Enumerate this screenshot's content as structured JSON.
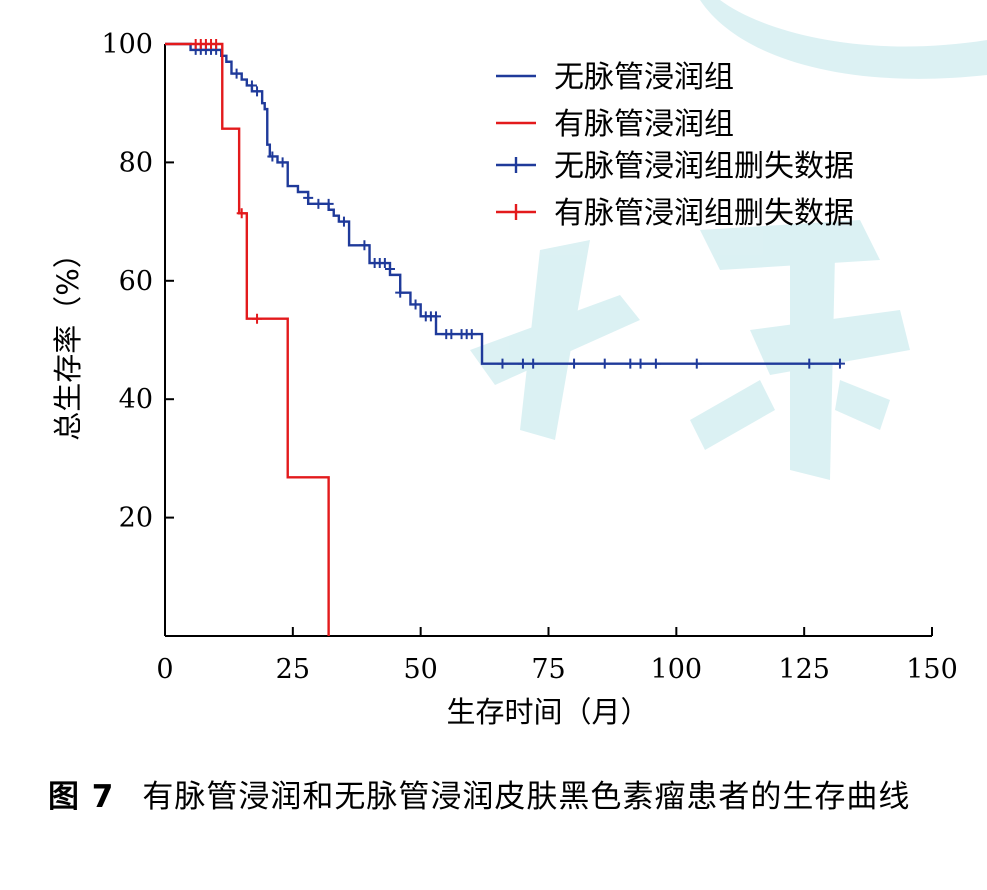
{
  "chart_data": {
    "type": "line",
    "subtype": "kaplan-meier",
    "xlabel": "生存时间（月）",
    "ylabel": "总生存率（%）",
    "xlim": [
      0,
      150
    ],
    "ylim": [
      0,
      100
    ],
    "xticks": [
      "0",
      "25",
      "50",
      "75",
      "100",
      "125",
      "150"
    ],
    "yticks": [
      "20",
      "40",
      "60",
      "80",
      "100"
    ],
    "grid": false,
    "legend_position": "top-right",
    "legend": [
      "无脉管浸润组",
      "有脉管浸润组",
      "无脉管浸润组删失数据",
      "有脉管浸润组删失数据"
    ],
    "series": [
      {
        "name": "无脉管浸润组",
        "color": "#1f3a9a",
        "steps": [
          [
            0,
            100
          ],
          [
            5,
            99
          ],
          [
            11,
            98
          ],
          [
            12,
            97
          ],
          [
            13,
            95
          ],
          [
            15,
            94
          ],
          [
            16,
            93
          ],
          [
            17,
            92
          ],
          [
            19,
            90
          ],
          [
            19.5,
            89
          ],
          [
            20,
            83
          ],
          [
            20.5,
            81
          ],
          [
            22,
            80
          ],
          [
            24,
            76
          ],
          [
            26,
            75
          ],
          [
            28,
            73
          ],
          [
            32,
            72
          ],
          [
            33,
            71
          ],
          [
            34,
            70
          ],
          [
            36,
            66
          ],
          [
            40,
            63
          ],
          [
            44,
            61
          ],
          [
            46,
            58
          ],
          [
            48,
            56
          ],
          [
            50,
            54
          ],
          [
            53,
            51
          ],
          [
            62,
            46
          ],
          [
            132,
            46
          ]
        ],
        "censored": [
          [
            6,
            99
          ],
          [
            7,
            99
          ],
          [
            8,
            99
          ],
          [
            9,
            99
          ],
          [
            10,
            99
          ],
          [
            14,
            95
          ],
          [
            17,
            93
          ],
          [
            18,
            92
          ],
          [
            21,
            81
          ],
          [
            23,
            80
          ],
          [
            28,
            74
          ],
          [
            30,
            73
          ],
          [
            32,
            73
          ],
          [
            35,
            70
          ],
          [
            39,
            66
          ],
          [
            41,
            63
          ],
          [
            42,
            63
          ],
          [
            43,
            63
          ],
          [
            44,
            62
          ],
          [
            46,
            58
          ],
          [
            49,
            56
          ],
          [
            51,
            54
          ],
          [
            52,
            54
          ],
          [
            53,
            54
          ],
          [
            55,
            51
          ],
          [
            56,
            51
          ],
          [
            58,
            51
          ],
          [
            59,
            51
          ],
          [
            60,
            51
          ],
          [
            66,
            46
          ],
          [
            70,
            46
          ],
          [
            72,
            46
          ],
          [
            80,
            46
          ],
          [
            86,
            46
          ],
          [
            91,
            46
          ],
          [
            93,
            46
          ],
          [
            96,
            46
          ],
          [
            104,
            46
          ],
          [
            126,
            46
          ],
          [
            132,
            46
          ]
        ]
      },
      {
        "name": "有脉管浸润组",
        "color": "#e31a1c",
        "steps": [
          [
            0,
            100
          ],
          [
            11.2,
            100
          ],
          [
            11.2,
            85.7
          ],
          [
            14.5,
            85.7
          ],
          [
            14.5,
            71.4
          ],
          [
            16,
            71.4
          ],
          [
            16,
            53.6
          ],
          [
            24,
            53.6
          ],
          [
            24,
            26.8
          ],
          [
            32,
            26.8
          ],
          [
            32,
            0
          ]
        ],
        "censored": [
          [
            6,
            100
          ],
          [
            7,
            100
          ],
          [
            8,
            100
          ],
          [
            9,
            100
          ],
          [
            10,
            100
          ],
          [
            15,
            71.4
          ],
          [
            18,
            53.6
          ]
        ]
      }
    ]
  },
  "caption": {
    "label": "图 7",
    "text": "有脉管浸润和无脉管浸润皮肤黑色素瘤患者的生存曲线"
  }
}
